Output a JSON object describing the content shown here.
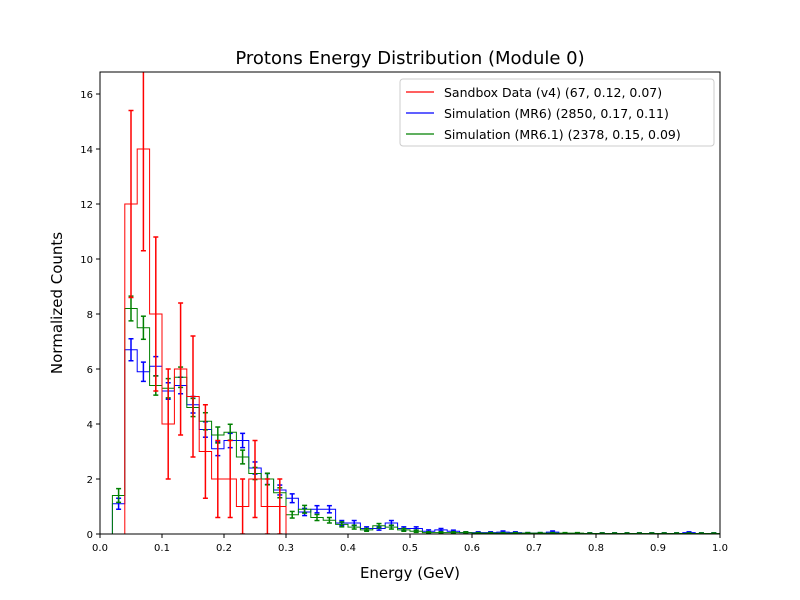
{
  "chart_data": {
    "type": "histogram-step",
    "title": "Protons Energy Distribution (Module 0)",
    "xlabel": "Energy (GeV)",
    "ylabel": "Normalized Counts",
    "xlim": [
      0.0,
      1.0
    ],
    "ylim": [
      0,
      16.8
    ],
    "x_ticks": [
      "0.0",
      "0.1",
      "0.2",
      "0.3",
      "0.4",
      "0.5",
      "0.6",
      "0.7",
      "0.8",
      "0.9",
      "1.0"
    ],
    "y_ticks": [
      "0",
      "2",
      "4",
      "6",
      "8",
      "10",
      "12",
      "14",
      "16"
    ],
    "grid": false,
    "legend_position": "top-right",
    "bin_width": 0.02,
    "series": [
      {
        "name": "Sandbox Data (v4) (67, 0.12, 0.07)",
        "color": "#ff0000",
        "x_start": 0.04,
        "values": [
          12.0,
          14.0,
          8.0,
          4.0,
          6.0,
          5.0,
          3.0,
          2.0,
          2.0,
          1.0,
          2.0,
          1.0,
          1.0,
          0
        ],
        "errors": [
          3.4,
          3.7,
          2.8,
          2.0,
          2.4,
          2.2,
          1.7,
          1.4,
          1.4,
          1.0,
          1.4,
          1.0,
          1.0,
          0
        ]
      },
      {
        "name": "Simulation (MR6) (2850, 0.17, 0.11)",
        "color": "#0000ff",
        "x_start": 0.02,
        "values": [
          1.1,
          6.7,
          5.9,
          6.1,
          5.2,
          5.4,
          4.7,
          3.8,
          3.1,
          3.4,
          3.4,
          2.4,
          2.0,
          1.6,
          1.3,
          0.8,
          0.9,
          0.9,
          0.4,
          0.4,
          0.2,
          0.2,
          0.4,
          0.2,
          0.2,
          0.1,
          0.15,
          0.1,
          0.05,
          0.05,
          0.05,
          0.07,
          0.05,
          0.03,
          0.03,
          0.07,
          0.02,
          0.02,
          0.02,
          0.02,
          0.02,
          0.02,
          0.02,
          0.02,
          0.02,
          0.02,
          0.05,
          0.02,
          0.02
        ],
        "errors": [
          0.2,
          0.4,
          0.35,
          0.35,
          0.3,
          0.3,
          0.3,
          0.28,
          0.25,
          0.26,
          0.26,
          0.22,
          0.2,
          0.18,
          0.16,
          0.13,
          0.13,
          0.13,
          0.09,
          0.09,
          0.06,
          0.06,
          0.09,
          0.06,
          0.06,
          0.05,
          0.05,
          0.04,
          0.03,
          0.03,
          0.03,
          0.04,
          0.03,
          0.02,
          0.02,
          0.04,
          0.02,
          0.02,
          0.02,
          0.02,
          0.02,
          0.02,
          0.02,
          0.02,
          0.02,
          0.02,
          0.03,
          0.02,
          0.02
        ]
      },
      {
        "name": "Simulation (MR6.1) (2378, 0.15, 0.09)",
        "color": "#008000",
        "x_start": 0.02,
        "values": [
          1.4,
          8.2,
          7.5,
          5.4,
          5.3,
          5.7,
          4.6,
          4.1,
          3.6,
          3.7,
          2.8,
          2.2,
          2.0,
          1.5,
          0.7,
          0.9,
          0.6,
          0.5,
          0.35,
          0.25,
          0.15,
          0.3,
          0.25,
          0.15,
          0.1,
          0.05,
          0.05,
          0.05,
          0.05,
          0.03,
          0.03,
          0.03,
          0.03,
          0.03,
          0.03,
          0.03,
          0.03,
          0.03,
          0.02,
          0.02,
          0.02,
          0.02,
          0.02,
          0.02,
          0.02,
          0.02,
          0.02,
          0.02,
          0.02
        ],
        "errors": [
          0.25,
          0.45,
          0.42,
          0.35,
          0.35,
          0.37,
          0.33,
          0.31,
          0.29,
          0.29,
          0.25,
          0.22,
          0.21,
          0.18,
          0.12,
          0.14,
          0.11,
          0.1,
          0.09,
          0.07,
          0.05,
          0.08,
          0.07,
          0.05,
          0.04,
          0.03,
          0.03,
          0.03,
          0.03,
          0.02,
          0.02,
          0.02,
          0.02,
          0.02,
          0.02,
          0.02,
          0.02,
          0.02,
          0.02,
          0.02,
          0.02,
          0.02,
          0.02,
          0.02,
          0.02,
          0.02,
          0.02,
          0.02,
          0.02
        ]
      }
    ]
  }
}
